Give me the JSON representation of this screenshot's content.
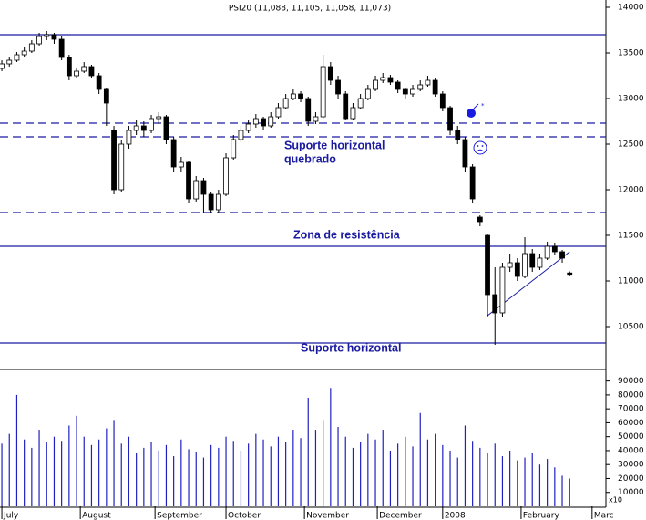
{
  "chart_data": {
    "type": "candlestick",
    "title": "PSI20 (11,088, 11,105, 11,058, 11,073)",
    "x": [
      0,
      2,
      4,
      6,
      8,
      10,
      12,
      14,
      16,
      18,
      20,
      22,
      24,
      26,
      28,
      30,
      32,
      34,
      36,
      38,
      40,
      42,
      44,
      46,
      48,
      50,
      52,
      54,
      56,
      58,
      60,
      62,
      64,
      66,
      68,
      70,
      72,
      74,
      76,
      78,
      80,
      82,
      84,
      86,
      88,
      90,
      92,
      94,
      96,
      98,
      100,
      102,
      104,
      106,
      108,
      110,
      112,
      114,
      116,
      118,
      120,
      122,
      124,
      126,
      128,
      130,
      132,
      134,
      136,
      138,
      140,
      142,
      144,
      146,
      148,
      150,
      152
    ],
    "open": [
      13330,
      13380,
      13420,
      13480,
      13520,
      13600,
      13680,
      13700,
      13650,
      13450,
      13250,
      13300,
      13350,
      13250,
      13100,
      12650,
      12000,
      12500,
      12650,
      12700,
      12650,
      12780,
      12800,
      12550,
      12250,
      12300,
      11900,
      12100,
      11950,
      11780,
      11950,
      12350,
      12550,
      12650,
      12720,
      12780,
      12700,
      12800,
      12900,
      13000,
      13050,
      13000,
      12750,
      12800,
      13350,
      13200,
      13050,
      12780,
      12900,
      13000,
      13100,
      13200,
      13230,
      13180,
      13100,
      13050,
      13100,
      13150,
      13200,
      13050,
      12900,
      12650,
      12550,
      12250,
      11700,
      11500,
      10850,
      10650,
      11150,
      11200,
      11050,
      11300,
      11150,
      11250,
      11380,
      11320,
      11088
    ],
    "high": [
      13420,
      13460,
      13510,
      13560,
      13640,
      13720,
      13740,
      13720,
      13680,
      13480,
      13340,
      13400,
      13370,
      13280,
      13120,
      12700,
      12550,
      12700,
      12760,
      12750,
      12820,
      12850,
      12820,
      12580,
      12360,
      12320,
      12150,
      12130,
      11980,
      12000,
      12400,
      12600,
      12700,
      12760,
      12830,
      12800,
      12850,
      12950,
      13050,
      13100,
      13080,
      13020,
      12850,
      13480,
      13400,
      13250,
      13080,
      12950,
      13050,
      13150,
      13250,
      13280,
      13260,
      13200,
      13120,
      13150,
      13200,
      13250,
      13220,
      13080,
      12920,
      12700,
      12580,
      12280,
      11720,
      11520,
      11150,
      11200,
      11300,
      11250,
      11480,
      11350,
      11300,
      11430,
      11420,
      11340,
      11105
    ],
    "low": [
      13300,
      13350,
      13400,
      13450,
      13500,
      13580,
      13640,
      13600,
      13420,
      13200,
      13220,
      13280,
      13220,
      13050,
      12700,
      11950,
      11980,
      12450,
      12600,
      12580,
      12620,
      12720,
      12500,
      12200,
      12200,
      11850,
      11870,
      11750,
      11750,
      11750,
      11930,
      12330,
      12520,
      12620,
      12680,
      12650,
      12680,
      12780,
      12880,
      12980,
      12960,
      12700,
      12720,
      12780,
      13150,
      13000,
      12760,
      12760,
      12880,
      12980,
      13080,
      13170,
      13150,
      13060,
      13000,
      13020,
      13080,
      13130,
      13020,
      12860,
      12600,
      12500,
      12200,
      11850,
      11600,
      10600,
      10300,
      10600,
      11100,
      11000,
      11030,
      11100,
      11120,
      11230,
      11280,
      11200,
      11058
    ],
    "close": [
      13380,
      13420,
      13480,
      13520,
      13600,
      13680,
      13700,
      13650,
      13450,
      13250,
      13300,
      13350,
      13250,
      13100,
      12950,
      12000,
      12500,
      12650,
      12700,
      12650,
      12780,
      12800,
      12550,
      12250,
      12300,
      11900,
      12100,
      11950,
      11780,
      11950,
      12350,
      12550,
      12650,
      12720,
      12780,
      12700,
      12800,
      12900,
      13000,
      13050,
      13000,
      12750,
      12800,
      13350,
      13200,
      13050,
      12780,
      12900,
      13000,
      13100,
      13200,
      13230,
      13180,
      13100,
      13050,
      13100,
      13150,
      13200,
      13050,
      12900,
      12650,
      12550,
      12250,
      11900,
      11650,
      10850,
      10650,
      11150,
      11200,
      11050,
      11300,
      11150,
      11250,
      11380,
      11320,
      11250,
      11073
    ],
    "volume": [
      45000,
      52000,
      80000,
      48000,
      42000,
      55000,
      46000,
      50000,
      47000,
      58000,
      65000,
      50000,
      44000,
      48000,
      56000,
      62000,
      45000,
      50000,
      38000,
      42000,
      46000,
      40000,
      44000,
      36000,
      48000,
      41000,
      39000,
      35000,
      44000,
      42000,
      50000,
      47000,
      40000,
      45000,
      52000,
      48000,
      43000,
      50000,
      46000,
      55000,
      49000,
      78000,
      55000,
      62000,
      85000,
      57000,
      50000,
      42000,
      46000,
      52000,
      48000,
      55000,
      40000,
      45000,
      50000,
      43000,
      67000,
      48000,
      52000,
      44000,
      40000,
      35000,
      58000,
      47000,
      42000,
      38000,
      45000,
      36000,
      40000,
      33000,
      35000,
      38000,
      30000,
      34000,
      28000,
      22000,
      20000
    ],
    "xlim": [
      -0.5,
      161.7
    ],
    "xticks": [
      {
        "value": 0,
        "label": "July"
      },
      {
        "value": 21,
        "label": "August"
      },
      {
        "value": 41,
        "label": "September"
      },
      {
        "value": 60,
        "label": "October"
      },
      {
        "value": 81,
        "label": "November"
      },
      {
        "value": 100.5,
        "label": "December"
      },
      {
        "value": 118,
        "label": "2008"
      },
      {
        "value": 139,
        "label": "February"
      },
      {
        "value": 158,
        "label": "Marc"
      }
    ],
    "ylim": [
      10080,
      14080
    ],
    "yticks": [
      10500,
      11000,
      11500,
      12000,
      12500,
      13000,
      13500,
      14000
    ],
    "volume_ylim": [
      0,
      95000
    ],
    "volume_yticks": [
      10000,
      20000,
      30000,
      40000,
      50000,
      60000,
      70000,
      80000,
      90000
    ],
    "volume_unit_label": "x10",
    "up_color": "#ffffff",
    "down_color": "#000000",
    "volume_color": "#2020c0",
    "line_color": "#1a1aa0",
    "levels": [
      {
        "value": 13700,
        "style": "solid"
      },
      {
        "value": 12730,
        "style": "dashed"
      },
      {
        "value": 12580,
        "style": "dashed"
      },
      {
        "value": 11750,
        "style": "dashed"
      },
      {
        "value": 11380,
        "style": "solid"
      },
      {
        "value": 10320,
        "style": "solid"
      }
    ],
    "trendline": {
      "x": [
        130,
        152
      ],
      "y": [
        10620,
        11320
      ]
    },
    "annotations": [
      "Suporte horizontal",
      "quebrado",
      "Zona de resistência",
      "Suporte horizontal"
    ]
  }
}
